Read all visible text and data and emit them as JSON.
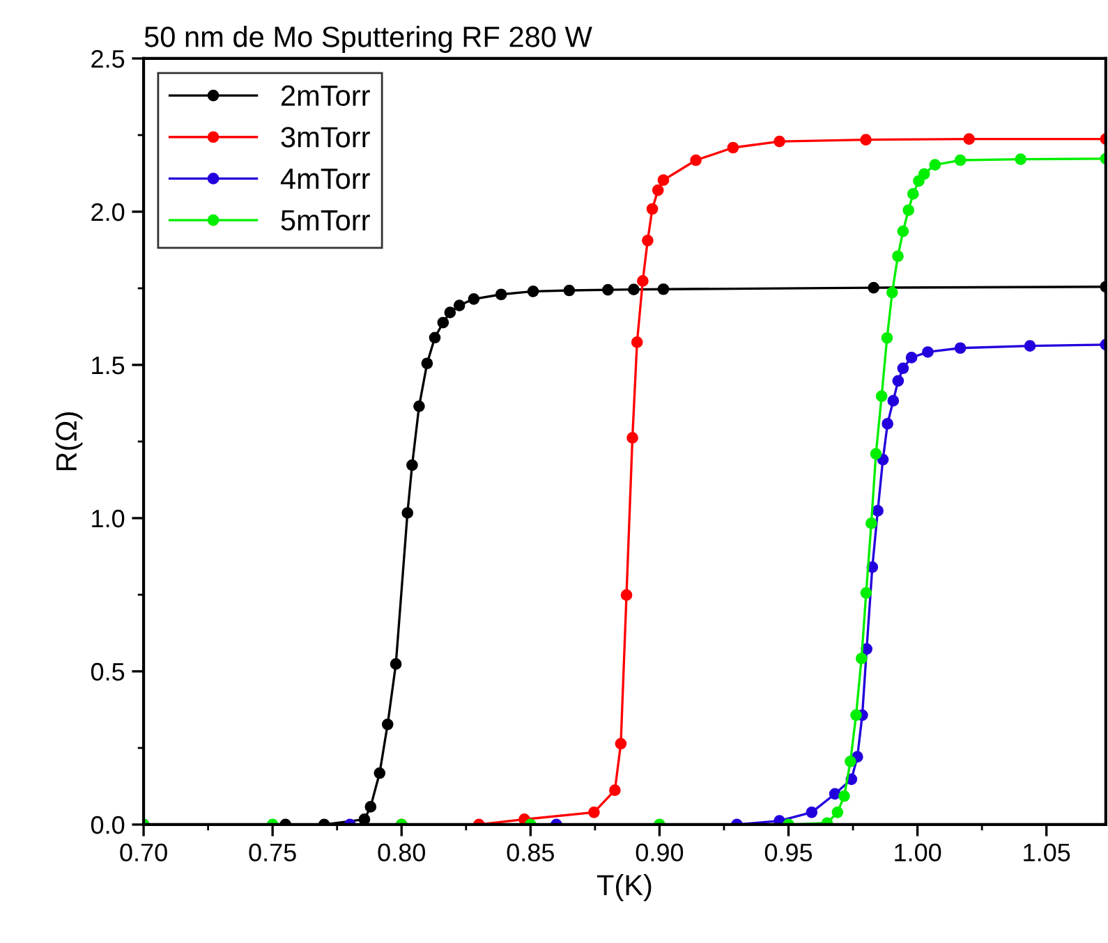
{
  "chart_data": {
    "type": "line",
    "title": "50 nm de Mo Sputtering RF 280 W",
    "xlabel": "T(K)",
    "ylabel": "R(Ω)",
    "xlim": [
      0.7,
      1.073
    ],
    "xticks": [
      {
        "value": 0.7,
        "label": "0.70"
      },
      {
        "value": 0.75,
        "label": "0.75"
      },
      {
        "value": 0.8,
        "label": "0.80"
      },
      {
        "value": 0.85,
        "label": "0.85"
      },
      {
        "value": 0.9,
        "label": "0.90"
      },
      {
        "value": 0.95,
        "label": "0.95"
      },
      {
        "value": 1.0,
        "label": "1.00"
      },
      {
        "value": 1.05,
        "label": "1.05"
      }
    ],
    "ylim": [
      0,
      2.5
    ],
    "yticks": [
      {
        "value": 0,
        "label": "0.0"
      },
      {
        "value": 0.5,
        "label": "0.5"
      },
      {
        "value": 1.0,
        "label": "1.0"
      },
      {
        "value": 1.5,
        "label": "1.5"
      },
      {
        "value": 2.0,
        "label": "2.0"
      },
      {
        "value": 2.5,
        "label": "2.5"
      }
    ],
    "grid": false,
    "legend": "top left",
    "marker": "circle",
    "line_style": "solid",
    "series": [
      {
        "name": "2mTorr",
        "color": "#000000",
        "x": [
          0.755,
          0.77,
          0.7856,
          0.788,
          0.7915,
          0.7946,
          0.7978,
          0.8023,
          0.8041,
          0.8068,
          0.8099,
          0.8129,
          0.8161,
          0.8188,
          0.8224,
          0.828,
          0.8386,
          0.851,
          0.865,
          0.88,
          0.89,
          0.9015,
          0.983,
          1.073
        ],
        "values": [
          0.0,
          0.0,
          0.017,
          0.058,
          0.168,
          0.327,
          0.524,
          1.017,
          1.173,
          1.365,
          1.505,
          1.589,
          1.638,
          1.671,
          1.694,
          1.715,
          1.73,
          1.74,
          1.743,
          1.745,
          1.746,
          1.747,
          1.752,
          1.755
        ]
      },
      {
        "name": "3mTorr",
        "color": "#ff0000",
        "x": [
          0.7,
          0.8,
          0.83,
          0.8476,
          0.8746,
          0.8827,
          0.885,
          0.8872,
          0.8895,
          0.8913,
          0.8935,
          0.8954,
          0.8972,
          0.8994,
          0.9015,
          0.9141,
          0.9285,
          0.9465,
          0.98,
          1.02,
          1.073
        ],
        "values": [
          0.0,
          0.0,
          0.0,
          0.017,
          0.04,
          0.112,
          0.264,
          0.749,
          1.262,
          1.574,
          1.774,
          1.906,
          2.009,
          2.07,
          2.103,
          2.168,
          2.209,
          2.229,
          2.235,
          2.237,
          2.237
        ]
      },
      {
        "name": "4mTorr",
        "color": "#2200dd",
        "x": [
          0.7,
          0.78,
          0.86,
          0.93,
          0.9465,
          0.959,
          0.968,
          0.9744,
          0.9767,
          0.9786,
          0.9803,
          0.9825,
          0.9846,
          0.9866,
          0.9884,
          0.9906,
          0.9925,
          0.9944,
          0.9977,
          1.004,
          1.0166,
          1.0436,
          1.073
        ],
        "values": [
          0.0,
          0.0,
          0.0,
          0.0,
          0.012,
          0.04,
          0.1,
          0.148,
          0.221,
          0.357,
          0.573,
          0.84,
          1.024,
          1.191,
          1.308,
          1.383,
          1.448,
          1.489,
          1.524,
          1.542,
          1.555,
          1.562,
          1.566
        ]
      },
      {
        "name": "5mTorr",
        "color": "#00ee00",
        "x": [
          0.7,
          0.75,
          0.8,
          0.85,
          0.9,
          0.95,
          0.965,
          0.969,
          0.9716,
          0.974,
          0.9762,
          0.9783,
          0.9801,
          0.9821,
          0.9839,
          0.9861,
          0.9882,
          0.9902,
          0.9924,
          0.9944,
          0.9965,
          0.9983,
          1.0005,
          1.0026,
          1.0068,
          1.0166,
          1.04,
          1.073
        ],
        "values": [
          0.0,
          0.0,
          0.0,
          0.0,
          0.0,
          0.0,
          0.005,
          0.04,
          0.093,
          0.206,
          0.357,
          0.542,
          0.756,
          0.983,
          1.21,
          1.398,
          1.588,
          1.736,
          1.855,
          1.936,
          2.005,
          2.058,
          2.1,
          2.123,
          2.153,
          2.168,
          2.171,
          2.173
        ]
      }
    ]
  }
}
